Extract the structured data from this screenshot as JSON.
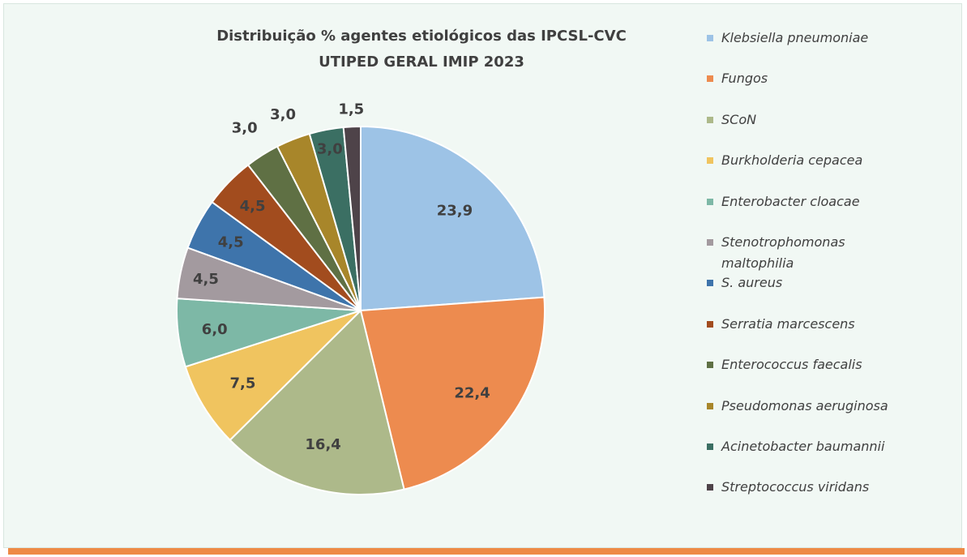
{
  "chart_data": {
    "type": "pie",
    "title": [
      "Distribuição % agentes etiológicos das IPCSL-CVC",
      "UTIPED GERAL IMIP 2023"
    ],
    "categories": [
      "Klebsiella pneumoniae",
      "Fungos",
      "SCoN",
      "Burkholderia cepacea",
      "Enterobacter cloacae",
      "Stenotrophomonas maltophilia",
      "S. aureus",
      "Serratia marcescens",
      "Enterococcus faecalis",
      "Pseudomonas aeruginosa",
      "Acinetobacter baumannii",
      "Streptococcus viridans"
    ],
    "values": [
      23.9,
      22.4,
      16.4,
      7.5,
      6.0,
      4.5,
      4.5,
      4.5,
      3.0,
      3.0,
      3.0,
      1.5
    ],
    "value_labels": [
      "23,9",
      "22,4",
      "16,4",
      "7,5",
      "6,0",
      "4,5",
      "4,5",
      "4,5",
      "3,0",
      "3,0",
      "3,0",
      "1,5"
    ],
    "colors": [
      "#9dc3e6",
      "#ed8b4f",
      "#adb98a",
      "#f0c45f",
      "#7db8a6",
      "#a39a9f",
      "#3e74ab",
      "#a24c1e",
      "#5f7044",
      "#a8862a",
      "#3b6f63",
      "#4e4349"
    ],
    "legend": "right"
  }
}
